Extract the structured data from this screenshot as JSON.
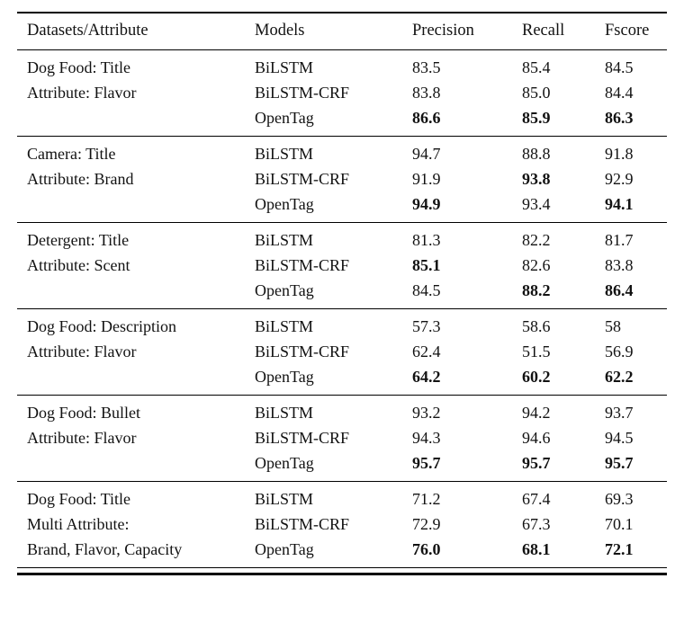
{
  "table": {
    "headers": [
      "Datasets/Attribute",
      "Models",
      "Precision",
      "Recall",
      "Fscore"
    ],
    "groups": [
      {
        "rows": [
          {
            "label": "Dog Food: Title",
            "model": "BiLSTM",
            "precision": "83.5",
            "recall": "85.4",
            "fscore": "84.5",
            "bold": []
          },
          {
            "label": "Attribute: Flavor",
            "model": "BiLSTM-CRF",
            "precision": "83.8",
            "recall": "85.0",
            "fscore": "84.4",
            "bold": []
          },
          {
            "label": "",
            "model": "OpenTag",
            "precision": "86.6",
            "recall": "85.9",
            "fscore": "86.3",
            "bold": [
              "precision",
              "recall",
              "fscore"
            ]
          }
        ]
      },
      {
        "rows": [
          {
            "label": "Camera: Title",
            "model": "BiLSTM",
            "precision": "94.7",
            "recall": "88.8",
            "fscore": "91.8",
            "bold": []
          },
          {
            "label": "Attribute: Brand",
            "model": "BiLSTM-CRF",
            "precision": "91.9",
            "recall": "93.8",
            "fscore": "92.9",
            "bold": [
              "recall"
            ]
          },
          {
            "label": "",
            "model": "OpenTag",
            "precision": "94.9",
            "recall": "93.4",
            "fscore": "94.1",
            "bold": [
              "precision",
              "fscore"
            ]
          }
        ]
      },
      {
        "rows": [
          {
            "label": "Detergent: Title",
            "model": "BiLSTM",
            "precision": "81.3",
            "recall": "82.2",
            "fscore": "81.7",
            "bold": []
          },
          {
            "label": "Attribute: Scent",
            "model": "BiLSTM-CRF",
            "precision": "85.1",
            "recall": "82.6",
            "fscore": "83.8",
            "bold": [
              "precision"
            ]
          },
          {
            "label": "",
            "model": "OpenTag",
            "precision": "84.5",
            "recall": "88.2",
            "fscore": "86.4",
            "bold": [
              "recall",
              "fscore"
            ]
          }
        ]
      },
      {
        "rows": [
          {
            "label": "Dog Food: Description",
            "model": "BiLSTM",
            "precision": "57.3",
            "recall": "58.6",
            "fscore": "58",
            "bold": []
          },
          {
            "label": "Attribute: Flavor",
            "model": "BiLSTM-CRF",
            "precision": "62.4",
            "recall": "51.5",
            "fscore": "56.9",
            "bold": []
          },
          {
            "label": "",
            "model": "OpenTag",
            "precision": "64.2",
            "recall": "60.2",
            "fscore": "62.2",
            "bold": [
              "precision",
              "recall",
              "fscore"
            ]
          }
        ]
      },
      {
        "rows": [
          {
            "label": "Dog Food: Bullet",
            "model": "BiLSTM",
            "precision": "93.2",
            "recall": "94.2",
            "fscore": "93.7",
            "bold": []
          },
          {
            "label": "Attribute: Flavor",
            "model": "BiLSTM-CRF",
            "precision": "94.3",
            "recall": "94.6",
            "fscore": "94.5",
            "bold": []
          },
          {
            "label": "",
            "model": "OpenTag",
            "precision": "95.7",
            "recall": "95.7",
            "fscore": "95.7",
            "bold": [
              "precision",
              "recall",
              "fscore"
            ]
          }
        ]
      },
      {
        "rows": [
          {
            "label": "Dog Food: Title",
            "model": "BiLSTM",
            "precision": "71.2",
            "recall": "67.4",
            "fscore": "69.3",
            "bold": []
          },
          {
            "label": "Multi Attribute:",
            "model": "BiLSTM-CRF",
            "precision": "72.9",
            "recall": "67.3",
            "fscore": "70.1",
            "bold": []
          },
          {
            "label": "Brand, Flavor, Capacity",
            "model": "OpenTag",
            "precision": "76.0",
            "recall": "68.1",
            "fscore": "72.1",
            "bold": [
              "precision",
              "recall",
              "fscore"
            ]
          }
        ]
      }
    ]
  }
}
